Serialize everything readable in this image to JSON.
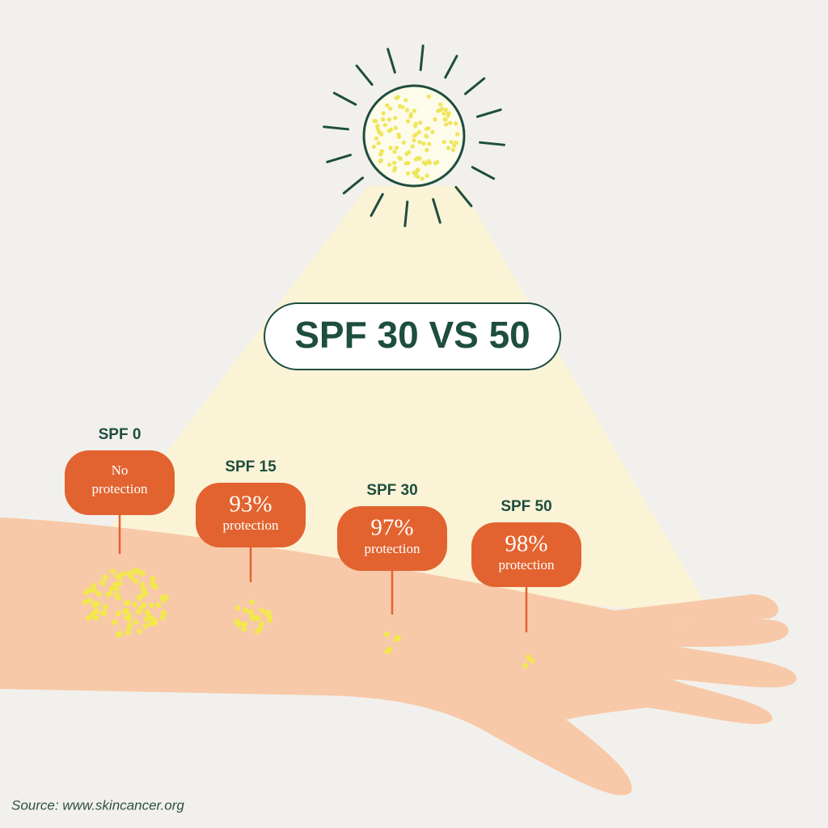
{
  "title": "SPF 30 VS 50",
  "markers": [
    {
      "label": "SPF 0",
      "lines": [
        "No",
        "protection"
      ]
    },
    {
      "label": "SPF 15",
      "lines": [
        "93%",
        "protection"
      ]
    },
    {
      "label": "SPF 30",
      "lines": [
        "97%",
        "protection"
      ]
    },
    {
      "label": "SPF 50",
      "lines": [
        "98%",
        "protection"
      ]
    }
  ],
  "source": "Source: www.skincancer.org"
}
